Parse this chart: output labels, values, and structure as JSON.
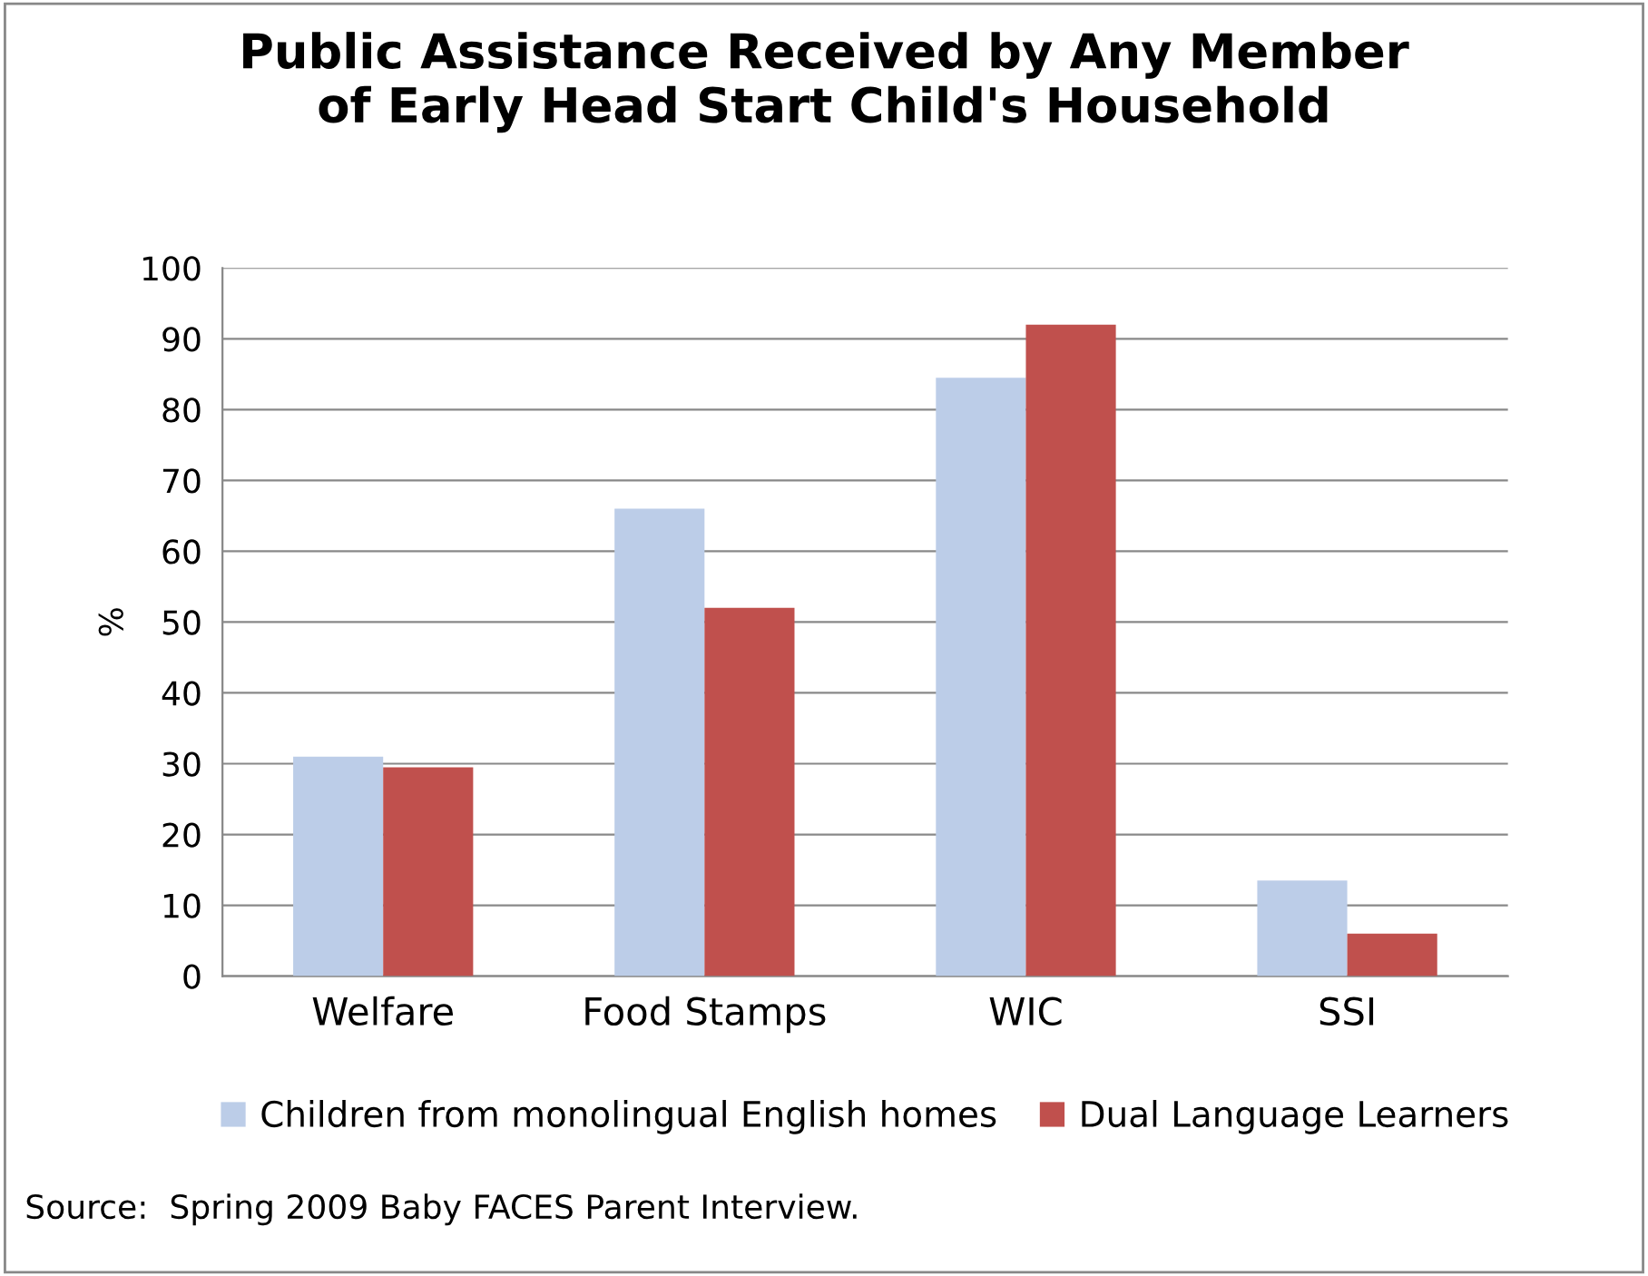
{
  "chart_data": {
    "type": "bar",
    "title": "Public Assistance Received by Any Member\nof Early Head Start Child's Household",
    "ylabel": "%",
    "categories": [
      "Welfare",
      "Food Stamps",
      "WIC",
      "SSI"
    ],
    "series": [
      {
        "name": "Children from monolingual English homes",
        "color": "#bccde8",
        "values": [
          31,
          66,
          84.5,
          13.5
        ]
      },
      {
        "name": "Dual Language Learners",
        "color": "#c0504d",
        "values": [
          29.5,
          52,
          92,
          6
        ]
      }
    ],
    "ylim": [
      0,
      100
    ],
    "yticks": [
      0,
      10,
      20,
      30,
      40,
      50,
      60,
      70,
      80,
      90,
      100
    ],
    "grid": "y",
    "legend": "bottom",
    "annotations": [
      "Source:  Spring 2009 Baby FACES Parent Interview."
    ]
  }
}
